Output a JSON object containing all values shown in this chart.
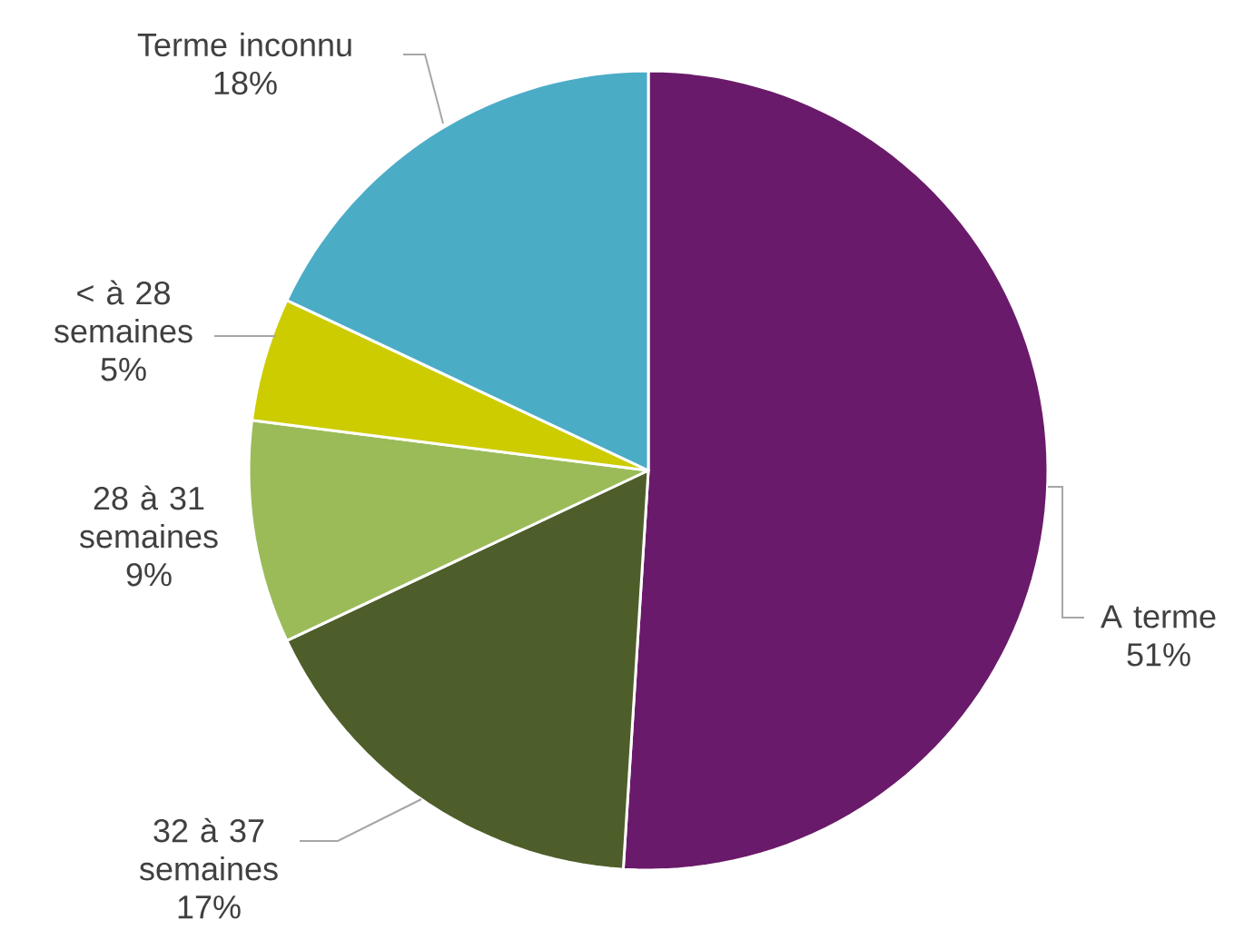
{
  "chart_data": {
    "type": "pie",
    "categories": [
      "A terme",
      "32 à 37 semaines",
      "28 à 31 semaines",
      "< à 28 semaines",
      "Terme inconnu"
    ],
    "values": [
      51,
      17,
      9,
      5,
      18
    ],
    "value_labels": [
      "51%",
      "17%",
      "9%",
      "5%",
      "18%"
    ],
    "colors": [
      "#6a1a6a",
      "#4e5e2a",
      "#9bbb59",
      "#cccc00",
      "#4bacc6"
    ]
  }
}
